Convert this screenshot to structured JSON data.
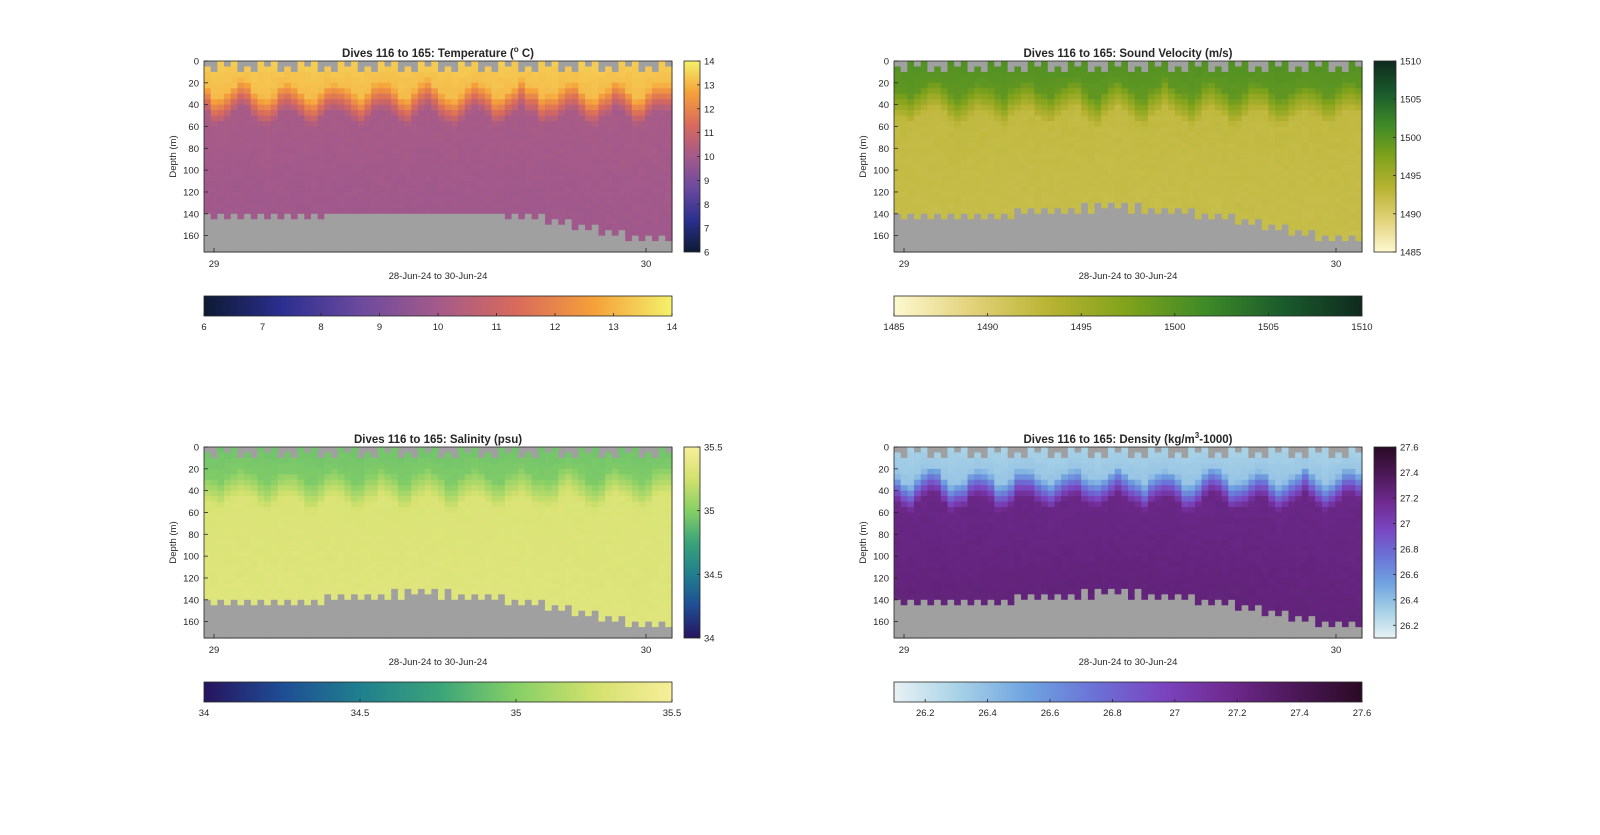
{
  "chart_data": [
    {
      "type": "heatmap",
      "title": "Dives 116 to 165: Temperature (°C)",
      "title_main": "Dives 116 to 165: Temperature (",
      "title_sup": "o",
      "title_end": " C)",
      "xlabel": "28-Jun-24 to 30-Jun-24",
      "ylabel": "Depth (m)",
      "x_ticks": [
        "29",
        "30"
      ],
      "y_ticks": [
        "0",
        "20",
        "40",
        "60",
        "80",
        "100",
        "120",
        "140",
        "160"
      ],
      "ylim": [
        0,
        175
      ],
      "colorbar": {
        "min": 6,
        "max": 14,
        "ticks": [
          "6",
          "7",
          "8",
          "9",
          "10",
          "11",
          "12",
          "13",
          "14"
        ],
        "stops": [
          "#0d1a33",
          "#2b2f8f",
          "#6b4a9e",
          "#a45a8a",
          "#d86a5c",
          "#f5a03a",
          "#f4f16a"
        ]
      },
      "surface": {
        "top_value": 13.4,
        "upper_value": 13.0,
        "mid_value": 10.1,
        "deep_value": 9.9
      },
      "values": {
        "thermocline_depth_m": [
          32,
          46
        ],
        "bottom_depth_m": [
          140,
          165
        ]
      },
      "bottom_color": "#a0a0a0"
    },
    {
      "type": "heatmap",
      "title": "Dives 116 to 165: Sound Velocity (m/s)",
      "title_main": "Dives 116 to 165: Sound Velocity (m/s)",
      "title_sup": "",
      "title_end": "",
      "xlabel": "28-Jun-24 to 30-Jun-24",
      "ylabel": "Depth (m)",
      "x_ticks": [
        "29",
        "30"
      ],
      "y_ticks": [
        "0",
        "20",
        "40",
        "60",
        "80",
        "100",
        "120",
        "140",
        "160"
      ],
      "ylim": [
        0,
        175
      ],
      "colorbar": {
        "min": 1485,
        "max": 1510,
        "ticks": [
          "1485",
          "1490",
          "1495",
          "1500",
          "1505",
          "1510"
        ],
        "stops": [
          "#fdf8d0",
          "#e2d27a",
          "#b8b332",
          "#7fa21b",
          "#3e8a28",
          "#1a5a2c",
          "#0f2a1e"
        ]
      },
      "surface": {
        "top_value": 1500.5,
        "upper_value": 1499.0,
        "mid_value": 1492.5,
        "deep_value": 1492.0
      },
      "values": {
        "thermocline_depth_m": [
          32,
          46
        ],
        "bottom_depth_m": [
          130,
          165
        ]
      },
      "bottom_color": "#a0a0a0"
    },
    {
      "type": "heatmap",
      "title": "Dives 116 to 165: Salinity (psu)",
      "title_main": "Dives 116 to 165: Salinity (psu)",
      "title_sup": "",
      "title_end": "",
      "xlabel": "28-Jun-24 to 30-Jun-24",
      "ylabel": "Depth (m)",
      "x_ticks": [
        "29",
        "30"
      ],
      "y_ticks": [
        "0",
        "20",
        "40",
        "60",
        "80",
        "100",
        "120",
        "140",
        "160"
      ],
      "ylim": [
        0,
        175
      ],
      "colorbar": {
        "min": 34,
        "max": 35.5,
        "ticks": [
          "34",
          "34.5",
          "35",
          "35.5"
        ],
        "stops": [
          "#26145e",
          "#1f4d94",
          "#207f8e",
          "#3aa37a",
          "#86cf66",
          "#d2e16d",
          "#f8ee9a"
        ]
      },
      "surface": {
        "top_value": 34.93,
        "upper_value": 35.0,
        "mid_value": 35.3,
        "deep_value": 35.33
      },
      "values": {
        "thermocline_depth_m": [
          32,
          46
        ],
        "bottom_depth_m": [
          130,
          165
        ]
      },
      "bottom_color": "#a0a0a0"
    },
    {
      "type": "heatmap",
      "title": "Dives 116 to 165: Density (kg/m³-1000)",
      "title_main": "Dives 116 to 165: Density (kg/m",
      "title_sup": "3",
      "title_end": "-1000)",
      "xlabel": "28-Jun-24 to 30-Jun-24",
      "ylabel": "Depth (m)",
      "x_ticks": [
        "29",
        "30"
      ],
      "y_ticks": [
        "0",
        "20",
        "40",
        "60",
        "80",
        "100",
        "120",
        "140",
        "160"
      ],
      "ylim": [
        0,
        175
      ],
      "colorbar": {
        "min": 26.1,
        "max": 27.6,
        "ticks": [
          "26.2",
          "26.4",
          "26.6",
          "26.8",
          "27",
          "27.2",
          "27.4",
          "27.6"
        ],
        "stops": [
          "#e8f2f4",
          "#a6d0e6",
          "#6fa3e0",
          "#6b72d6",
          "#7a45c0",
          "#6f2a8f",
          "#4c1858",
          "#2a0a24"
        ]
      },
      "surface": {
        "top_value": 26.3,
        "upper_value": 26.4,
        "mid_value": 27.2,
        "deep_value": 27.25
      },
      "values": {
        "thermocline_depth_m": [
          32,
          46
        ],
        "bottom_depth_m": [
          130,
          165
        ]
      },
      "bottom_color": "#a0a0a0"
    }
  ]
}
